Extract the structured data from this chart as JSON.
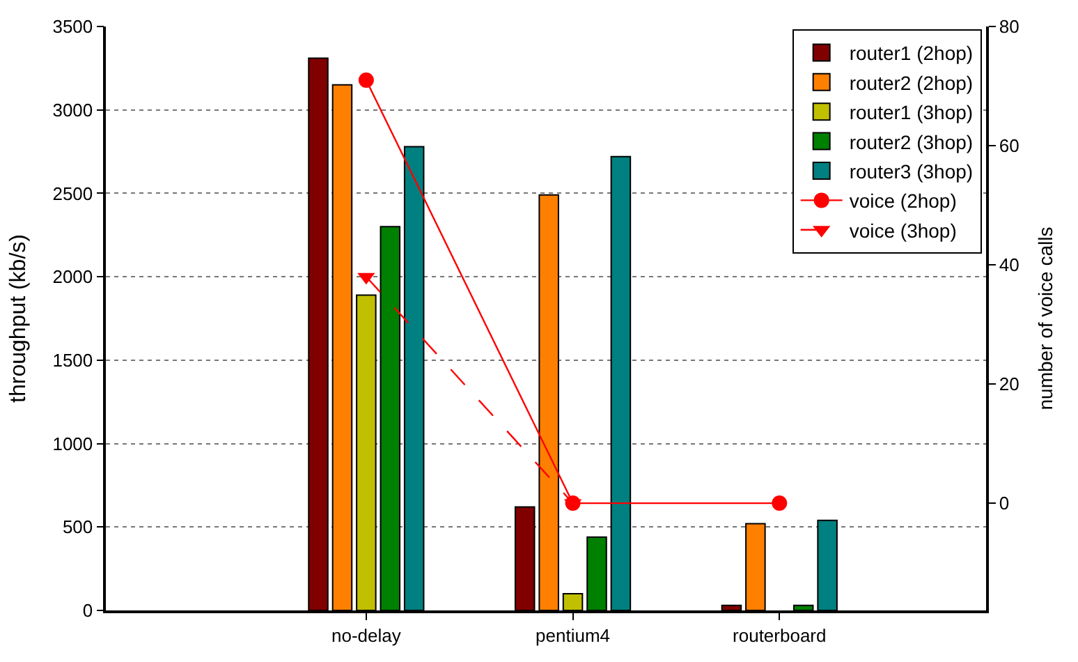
{
  "chart_data": {
    "type": "bar",
    "categories": [
      "no-delay",
      "pentium4",
      "routerboard"
    ],
    "ylabel": "throughput (kb/s)",
    "y2label": "number of voice calls",
    "ylim": [
      0,
      3500
    ],
    "yticks": [
      0,
      500,
      1000,
      1500,
      2000,
      2500,
      3000,
      3500
    ],
    "y2lim": [
      -18,
      80
    ],
    "y2ticks": [
      0,
      20,
      40,
      60,
      80
    ],
    "grid": "y",
    "legend": "top right",
    "series": [
      {
        "name": "router1 (2hop)",
        "color": "#800000",
        "values": [
          3310,
          620,
          30
        ]
      },
      {
        "name": "router2 (2hop)",
        "color": "#ff8000",
        "values": [
          3150,
          2490,
          520
        ]
      },
      {
        "name": "router1 (3hop)",
        "color": "#c0c000",
        "values": [
          1890,
          100,
          null
        ]
      },
      {
        "name": "router2 (3hop)",
        "color": "#008000",
        "values": [
          2300,
          440,
          30
        ]
      },
      {
        "name": "router3 (3hop)",
        "color": "#008080",
        "values": [
          2780,
          2720,
          540
        ]
      },
      {
        "name": "voice (2hop)",
        "type": "line",
        "axis": "y2",
        "color": "#ff0000",
        "marker": "circle",
        "line_style": "solid",
        "values": [
          71,
          0,
          0
        ]
      },
      {
        "name": "voice (3hop)",
        "type": "line",
        "axis": "y2",
        "color": "#ff0000",
        "marker": "triangle",
        "line_style": "dashed",
        "values": [
          38,
          0,
          null
        ]
      }
    ]
  }
}
